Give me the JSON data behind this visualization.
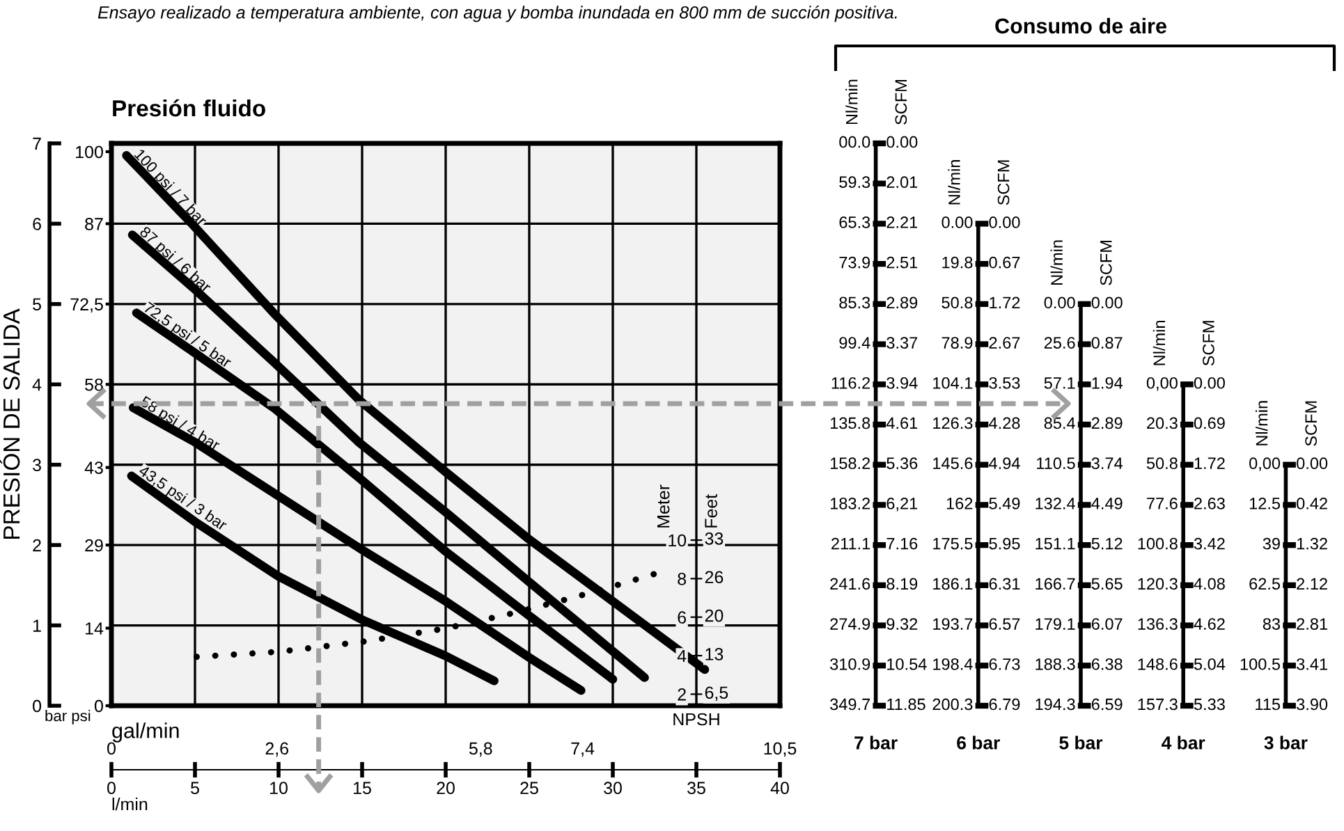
{
  "chart_data": [
    {
      "type": "line",
      "title": "Presión fluido",
      "subtitle": "Ensayo realizado a temperatura ambiente, con agua y bomba inundada en 800 mm de succión positiva.",
      "xlabel": "l/min",
      "x2label": "gal/min",
      "ylabel": "PRESIÓN DE SALIDA",
      "y3label": "Meter",
      "annotations": [
        "bar psi",
        "NPSH",
        "Feet",
        "6,5",
        "13",
        "20",
        "26",
        "33"
      ],
      "xlim": [
        0,
        40
      ],
      "xticks": [
        0,
        5,
        10,
        15,
        20,
        25,
        30,
        35,
        40
      ],
      "x2lim": [
        0,
        10.5
      ],
      "x2ticks": [
        0,
        {
          "value": 2.6,
          "label": "2,6"
        },
        {
          "value": 5.8,
          "label": "5,8"
        },
        {
          "value": 7.4,
          "label": "7,4"
        },
        {
          "value": 10.5,
          "label": "10,5"
        }
      ],
      "ylim": [
        0,
        7
      ],
      "yticks": [
        0,
        1,
        2,
        3,
        4,
        5,
        6,
        7
      ],
      "y2lim": [
        0,
        101.5
      ],
      "y2ticks": [
        0,
        14,
        29,
        43,
        58,
        {
          "value": 72.5,
          "label": "72,5"
        },
        87,
        100
      ],
      "y3lim": [
        1.4,
        30.6
      ],
      "y3ticks": [
        2,
        4,
        6,
        8,
        10
      ],
      "grid": true,
      "line_style": "solid",
      "ref_lines": [
        {
          "axis": "y",
          "value": 3.76,
          "color": "#a0a0a0",
          "line_style": "dashed"
        },
        {
          "axis": "x",
          "value": 12.4,
          "color": "#a0a0a0",
          "line_style": "dashed"
        }
      ],
      "series": [
        {
          "name": "100 psi / 7 bar",
          "color": "#000000",
          "x": [
            0.9,
            4.9,
            9.7,
            14.8,
            20,
            25,
            30,
            35.5
          ],
          "values": [
            6.85,
            5.98,
            4.89,
            3.81,
            2.91,
            2.07,
            1.3,
            0.45
          ]
        },
        {
          "name": "87 psi / 6 bar",
          "color": "#000000",
          "x": [
            1.25,
            4.9,
            9.7,
            14.8,
            20,
            25,
            31.9
          ],
          "values": [
            5.86,
            5.2,
            4.28,
            3.28,
            2.41,
            1.54,
            0.35
          ]
        },
        {
          "name": "72,5 psi / 5 bar",
          "color": "#000000",
          "x": [
            1.5,
            5,
            9.7,
            14.8,
            20,
            25,
            30
          ],
          "values": [
            4.89,
            4.39,
            3.71,
            2.84,
            1.92,
            1.12,
            0.33
          ]
        },
        {
          "name": "58 psi / 4 bar",
          "color": "#000000",
          "x": [
            1.3,
            5,
            10,
            15,
            20,
            25,
            28.1
          ],
          "values": [
            3.71,
            3.28,
            2.61,
            1.94,
            1.3,
            0.6,
            0.19
          ]
        },
        {
          "name": "43,5 psi / 3 bar",
          "color": "#000000",
          "x": [
            1.2,
            5,
            10,
            15,
            20,
            22.9
          ],
          "values": [
            2.86,
            2.29,
            1.61,
            1.07,
            0.62,
            0.31
          ]
        },
        {
          "color": "#000000",
          "axis": "y3",
          "line_style": "dotted",
          "x": [
            5.1,
            10,
            15,
            20,
            24.2,
            27.4,
            29.9,
            32.6
          ],
          "values": [
            3.94,
            4.2,
            4.72,
            5.41,
            6.24,
            6.96,
            7.57,
            8.27
          ]
        }
      ]
    },
    {
      "type": "other",
      "title": "Consumo de aire",
      "categories": [
        "Nl/min",
        "SCFM",
        "Nl/min",
        "SCFM",
        "Nl/min",
        "SCFM",
        "Nl/min",
        "SCFM",
        "Nl/min",
        "SCFM"
      ],
      "annotations": [
        "7 bar",
        "6 bar",
        "5 bar",
        "4 bar",
        "3 bar"
      ],
      "cell_labels": [
        [
          "00.0",
          "0.00",
          null,
          null,
          null,
          null,
          null,
          null,
          null,
          null
        ],
        [
          "59.3",
          "2.01",
          null,
          null,
          null,
          null,
          null,
          null,
          null,
          null
        ],
        [
          "65.3",
          "2.21",
          "0.00",
          "0.00",
          null,
          null,
          null,
          null,
          null,
          null
        ],
        [
          "73.9",
          "2.51",
          "19.8",
          "0.67",
          null,
          null,
          null,
          null,
          null,
          null
        ],
        [
          "85.3",
          "2.89",
          "50.8",
          "1.72",
          "0.00",
          "0.00",
          null,
          null,
          null,
          null
        ],
        [
          "99.4",
          "3.37",
          "78.9",
          "2.67",
          "25.6",
          "0.87",
          null,
          null,
          null,
          null
        ],
        [
          "116.2",
          "3.94",
          "104.1",
          "3.53",
          "57.1",
          "1.94",
          "0,00",
          "0.00",
          null,
          null
        ],
        [
          "135.8",
          "4.61",
          "126.3",
          "4.28",
          "85.4",
          "2.89",
          "20.3",
          "0.69",
          null,
          null
        ],
        [
          "158.2",
          "5.36",
          "145.6",
          "4.94",
          "110.5",
          "3.74",
          "50.8",
          "1.72",
          "0,00",
          "0.00"
        ],
        [
          "183.2",
          "6,21",
          "162",
          "5.49",
          "132.4",
          "4.49",
          "77.6",
          "2.63",
          "12.5",
          "0.42"
        ],
        [
          "211.1",
          "7.16",
          "175.5",
          "5.95",
          "151.1",
          "5.12",
          "100.8",
          "3.42",
          "39",
          "1.32"
        ],
        [
          "241.6",
          "8.19",
          "186.1",
          "6.31",
          "166.7",
          "5.65",
          "120.3",
          "4.08",
          "62.5",
          "2.12"
        ],
        [
          "274.9",
          "9.32",
          "193.7",
          "6.57",
          "179.1",
          "6.07",
          "136.3",
          "4.62",
          "83",
          "2.81"
        ],
        [
          "310.9",
          "10.54",
          "198.4",
          "6.73",
          "188.3",
          "6.38",
          "148.6",
          "5.04",
          "100.5",
          "3.41"
        ],
        [
          "349.7",
          "11.85",
          "200.3",
          "6.79",
          "194.3",
          "6.59",
          "157.3",
          "5.33",
          "115",
          "3.90"
        ]
      ]
    }
  ]
}
